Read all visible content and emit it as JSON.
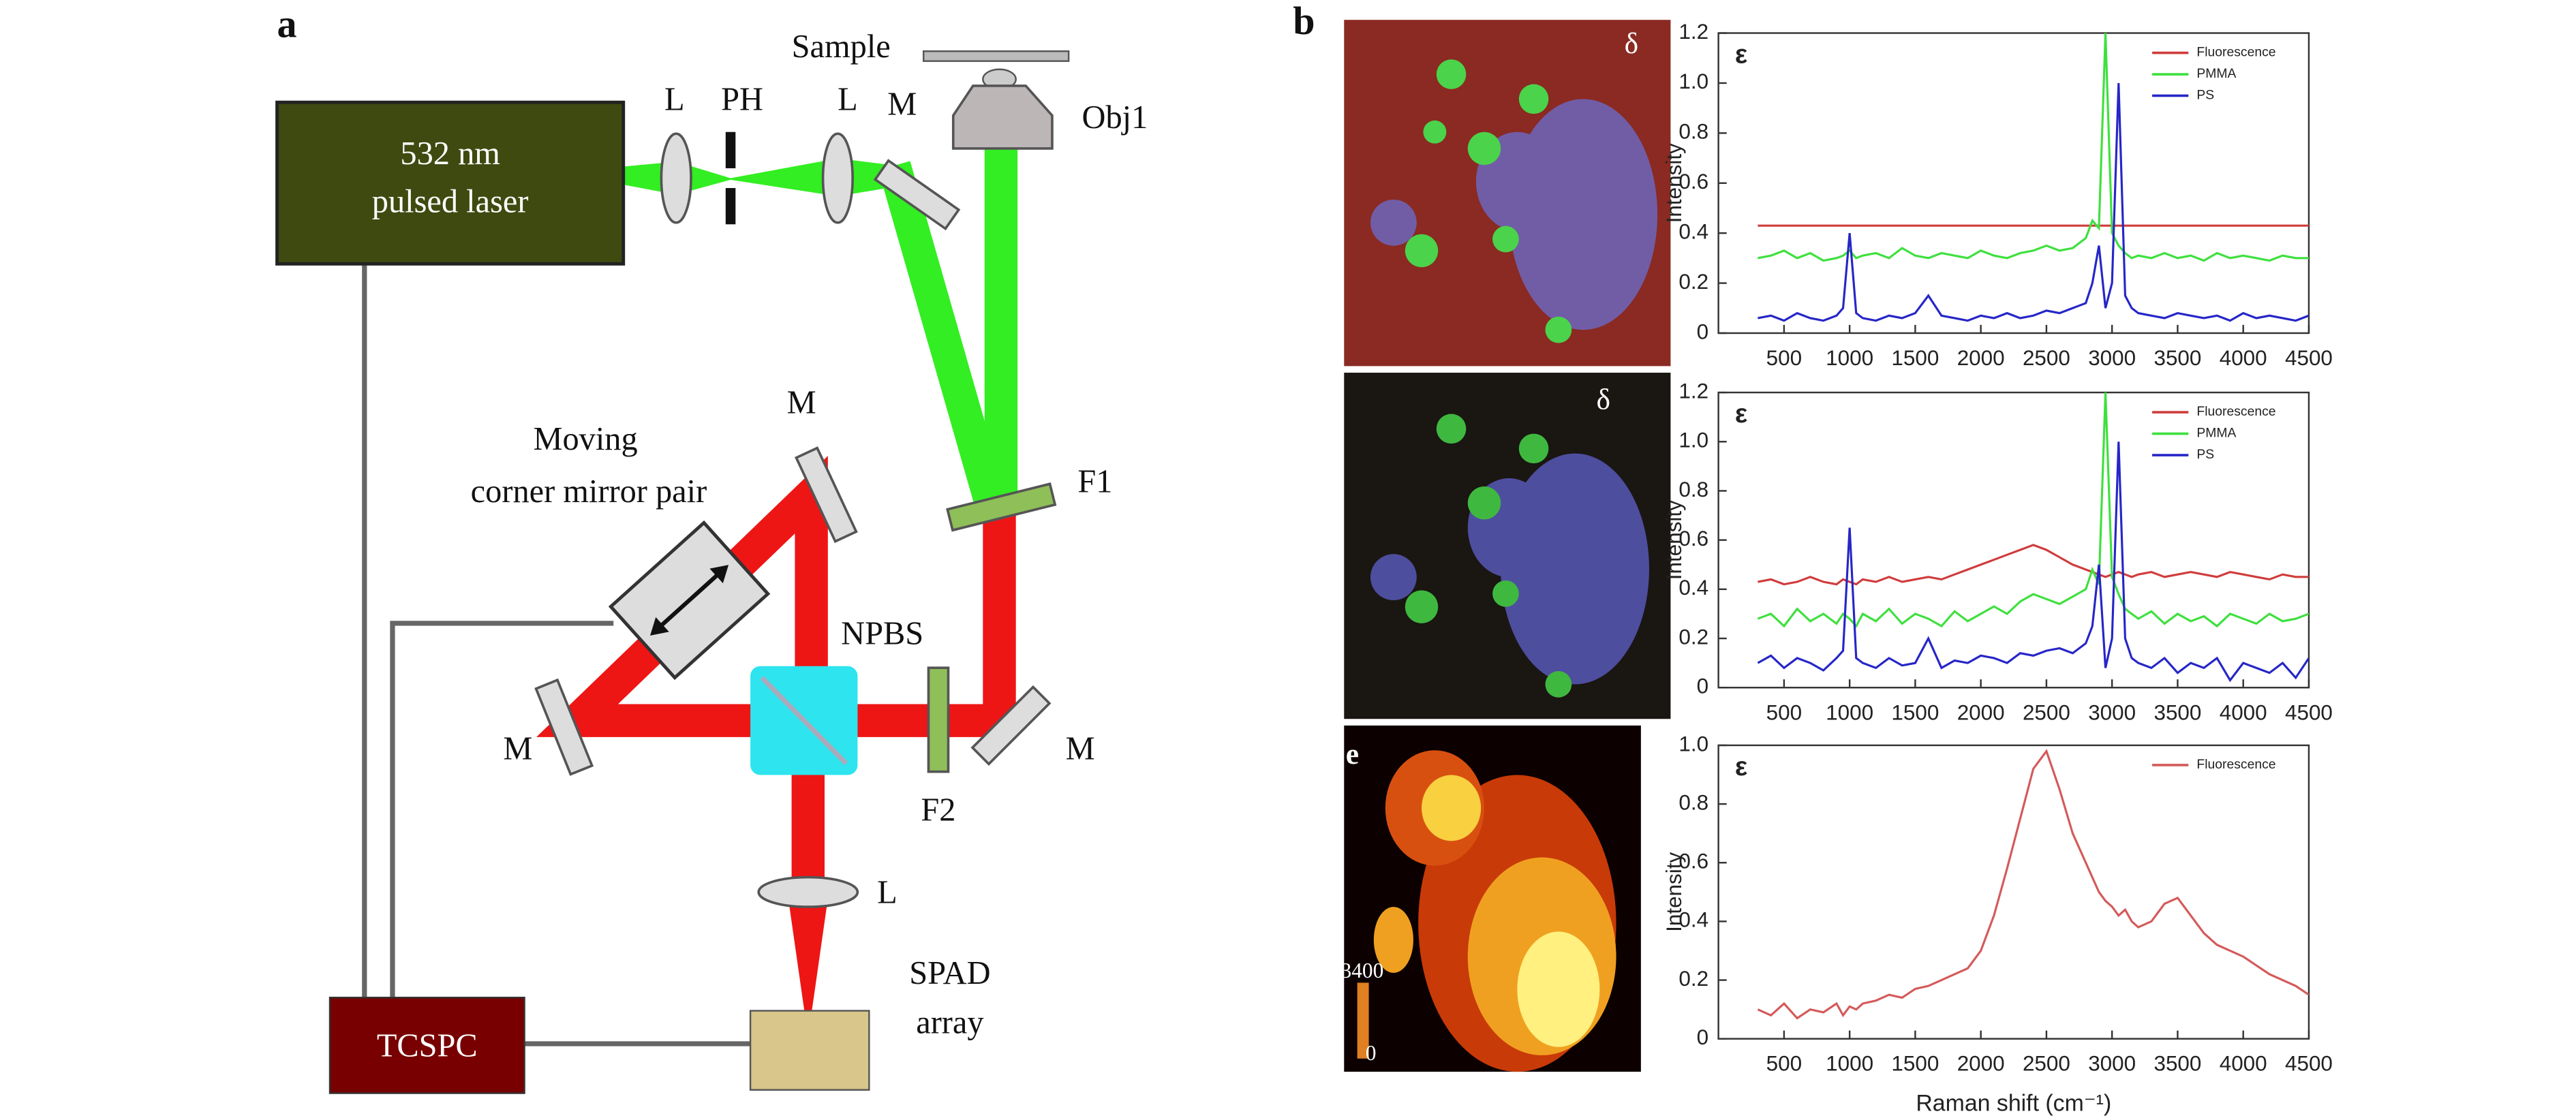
{
  "diagram": {
    "panel_label": "a",
    "sample": "Sample",
    "lens_1": "L",
    "pinhole": "PH",
    "lens_2": "L",
    "mirror_1": "M",
    "objective": "Obj1",
    "laser": [
      "532 nm",
      "pulsed laser"
    ],
    "corner_mirror": [
      "Moving",
      "corner mirror pair"
    ],
    "mirror_2": "M",
    "filter_1": "F1",
    "beamsplitter": "NPBS",
    "mirror_3": "M",
    "filter_2": "F2",
    "mirror_4": "M",
    "lens_3": "L",
    "tcspc": "TCSPC",
    "spad": [
      "SPAD",
      "array"
    ]
  },
  "images": {
    "panel_label": "b",
    "image_labels": [
      "δ",
      "δ",
      "e"
    ],
    "colorbar_labels": [
      "3400",
      "0"
    ]
  },
  "chart_data": [
    {
      "type": "line",
      "panel_label": "ε",
      "y_label": "Intensity",
      "x": [
        300,
        400,
        500,
        600,
        700,
        800,
        900,
        950,
        1000,
        1050,
        1100,
        1200,
        1300,
        1400,
        1500,
        1600,
        1700,
        1800,
        1900,
        2000,
        2100,
        2200,
        2300,
        2400,
        2500,
        2600,
        2700,
        2800,
        2850,
        2900,
        2950,
        3000,
        3050,
        3100,
        3150,
        3200,
        3300,
        3400,
        3500,
        3600,
        3700,
        3800,
        3900,
        4000,
        4100,
        4200,
        4300,
        4400,
        4500
      ],
      "xlim": [
        0,
        4500
      ],
      "xticks": [
        500,
        1000,
        1500,
        2000,
        2500,
        3000,
        3500,
        4000,
        4500
      ],
      "ylim": [
        0,
        1.2
      ],
      "yticks": [
        0,
        0.2,
        0.4,
        0.6,
        0.8,
        {
          "value": 1,
          "label": "1.0"
        },
        1.2
      ],
      "legend": "upper right",
      "series": [
        {
          "name": "Fluorescence",
          "color": "#d03c3c",
          "values": [
            0.43,
            0.43,
            0.43,
            0.43,
            0.43,
            0.43,
            0.43,
            0.43,
            0.43,
            0.43,
            0.43,
            0.43,
            0.43,
            0.43,
            0.43,
            0.43,
            0.43,
            0.43,
            0.43,
            0.43,
            0.43,
            0.43,
            0.43,
            0.43,
            0.43,
            0.43,
            0.43,
            0.43,
            0.43,
            0.43,
            0.43,
            0.43,
            0.43,
            0.43,
            0.43,
            0.43,
            0.43,
            0.43,
            0.43,
            0.43,
            0.43,
            0.43,
            0.43,
            0.43,
            0.43,
            0.43,
            0.43,
            0.43,
            0.43
          ]
        },
        {
          "name": "PMMA",
          "color": "#3ee03e",
          "values": [
            0.3,
            0.31,
            0.33,
            0.3,
            0.32,
            0.29,
            0.3,
            0.31,
            0.33,
            0.3,
            0.31,
            0.32,
            0.3,
            0.34,
            0.31,
            0.3,
            0.32,
            0.31,
            0.3,
            0.33,
            0.31,
            0.3,
            0.32,
            0.33,
            0.35,
            0.33,
            0.34,
            0.38,
            0.45,
            0.42,
            1.2,
            0.4,
            0.35,
            0.32,
            0.3,
            0.31,
            0.3,
            0.32,
            0.3,
            0.31,
            0.29,
            0.32,
            0.3,
            0.31,
            0.3,
            0.29,
            0.31,
            0.3,
            0.3
          ]
        },
        {
          "name": "PS",
          "color": "#2626c8",
          "values": [
            0.06,
            0.07,
            0.05,
            0.08,
            0.06,
            0.05,
            0.07,
            0.1,
            0.4,
            0.08,
            0.06,
            0.05,
            0.07,
            0.06,
            0.08,
            0.15,
            0.07,
            0.06,
            0.05,
            0.07,
            0.06,
            0.08,
            0.06,
            0.07,
            0.09,
            0.08,
            0.1,
            0.12,
            0.2,
            0.35,
            0.1,
            0.2,
            1.0,
            0.15,
            0.1,
            0.08,
            0.07,
            0.06,
            0.08,
            0.07,
            0.06,
            0.07,
            0.05,
            0.08,
            0.06,
            0.07,
            0.06,
            0.05,
            0.07
          ]
        }
      ]
    },
    {
      "type": "line",
      "panel_label": "ε",
      "y_label": "Intensity",
      "x": [
        300,
        400,
        500,
        600,
        700,
        800,
        900,
        950,
        1000,
        1050,
        1100,
        1200,
        1300,
        1400,
        1500,
        1600,
        1700,
        1800,
        1900,
        2000,
        2100,
        2200,
        2300,
        2400,
        2500,
        2600,
        2700,
        2800,
        2850,
        2900,
        2950,
        3000,
        3050,
        3100,
        3150,
        3200,
        3300,
        3400,
        3500,
        3600,
        3700,
        3800,
        3900,
        4000,
        4100,
        4200,
        4300,
        4400,
        4500
      ],
      "xlim": [
        0,
        4500
      ],
      "xticks": [
        500,
        1000,
        1500,
        2000,
        2500,
        3000,
        3500,
        4000,
        4500
      ],
      "ylim": [
        0,
        1.2
      ],
      "yticks": [
        0,
        0.2,
        0.4,
        0.6,
        0.8,
        {
          "value": 1,
          "label": "1.0"
        },
        1.2
      ],
      "legend": "upper right",
      "series": [
        {
          "name": "Fluorescence",
          "color": "#d03c3c",
          "values": [
            0.43,
            0.44,
            0.42,
            0.43,
            0.45,
            0.43,
            0.42,
            0.44,
            0.43,
            0.42,
            0.44,
            0.43,
            0.45,
            0.43,
            0.44,
            0.45,
            0.44,
            0.46,
            0.48,
            0.5,
            0.52,
            0.54,
            0.56,
            0.58,
            0.56,
            0.53,
            0.5,
            0.48,
            0.47,
            0.46,
            0.45,
            0.46,
            0.47,
            0.46,
            0.45,
            0.46,
            0.47,
            0.45,
            0.46,
            0.47,
            0.46,
            0.45,
            0.47,
            0.46,
            0.45,
            0.44,
            0.46,
            0.45,
            0.45
          ]
        },
        {
          "name": "PMMA",
          "color": "#3ee03e",
          "values": [
            0.28,
            0.3,
            0.25,
            0.32,
            0.27,
            0.3,
            0.26,
            0.3,
            0.28,
            0.25,
            0.3,
            0.27,
            0.32,
            0.26,
            0.3,
            0.28,
            0.25,
            0.31,
            0.27,
            0.3,
            0.33,
            0.3,
            0.35,
            0.38,
            0.36,
            0.34,
            0.37,
            0.4,
            0.48,
            0.42,
            1.2,
            0.45,
            0.38,
            0.32,
            0.3,
            0.28,
            0.31,
            0.26,
            0.3,
            0.27,
            0.29,
            0.25,
            0.3,
            0.28,
            0.26,
            0.3,
            0.27,
            0.28,
            0.3
          ]
        },
        {
          "name": "PS",
          "color": "#2626c8",
          "values": [
            0.1,
            0.13,
            0.08,
            0.12,
            0.1,
            0.07,
            0.12,
            0.15,
            0.65,
            0.12,
            0.1,
            0.08,
            0.12,
            0.09,
            0.1,
            0.2,
            0.08,
            0.11,
            0.1,
            0.13,
            0.12,
            0.1,
            0.14,
            0.13,
            0.15,
            0.16,
            0.14,
            0.18,
            0.25,
            0.5,
            0.08,
            0.2,
            1.0,
            0.2,
            0.12,
            0.1,
            0.08,
            0.12,
            0.06,
            0.1,
            0.08,
            0.12,
            0.03,
            0.1,
            0.08,
            0.06,
            0.1,
            0.04,
            0.12
          ]
        }
      ]
    },
    {
      "type": "line",
      "panel_label": "ε",
      "y_label": "Intensity",
      "x_label": "Raman shift (cm⁻¹)",
      "x": [
        300,
        400,
        500,
        600,
        700,
        800,
        900,
        950,
        1000,
        1050,
        1100,
        1200,
        1300,
        1400,
        1500,
        1600,
        1700,
        1800,
        1900,
        2000,
        2100,
        2200,
        2300,
        2400,
        2500,
        2600,
        2700,
        2800,
        2850,
        2900,
        2950,
        3000,
        3050,
        3100,
        3150,
        3200,
        3300,
        3400,
        3500,
        3600,
        3700,
        3800,
        3900,
        4000,
        4100,
        4200,
        4300,
        4400,
        4500
      ],
      "xlim": [
        0,
        4500
      ],
      "xticks": [
        500,
        1000,
        1500,
        2000,
        2500,
        3000,
        3500,
        4000,
        4500
      ],
      "ylim": [
        0,
        1
      ],
      "yticks": [
        0,
        0.2,
        0.4,
        0.6,
        0.8,
        {
          "value": 1,
          "label": "1.0"
        }
      ],
      "legend": "upper right",
      "series": [
        {
          "name": "Fluorescence",
          "color": "#d45a5a",
          "values": [
            0.1,
            0.08,
            0.12,
            0.07,
            0.1,
            0.09,
            0.12,
            0.08,
            0.11,
            0.1,
            0.12,
            0.13,
            0.15,
            0.14,
            0.17,
            0.18,
            0.2,
            0.22,
            0.24,
            0.3,
            0.42,
            0.58,
            0.75,
            0.92,
            0.98,
            0.85,
            0.7,
            0.6,
            0.55,
            0.5,
            0.47,
            0.45,
            0.42,
            0.44,
            0.4,
            0.38,
            0.4,
            0.46,
            0.48,
            0.42,
            0.36,
            0.32,
            0.3,
            0.28,
            0.25,
            0.22,
            0.2,
            0.18,
            0.15
          ]
        }
      ]
    }
  ]
}
